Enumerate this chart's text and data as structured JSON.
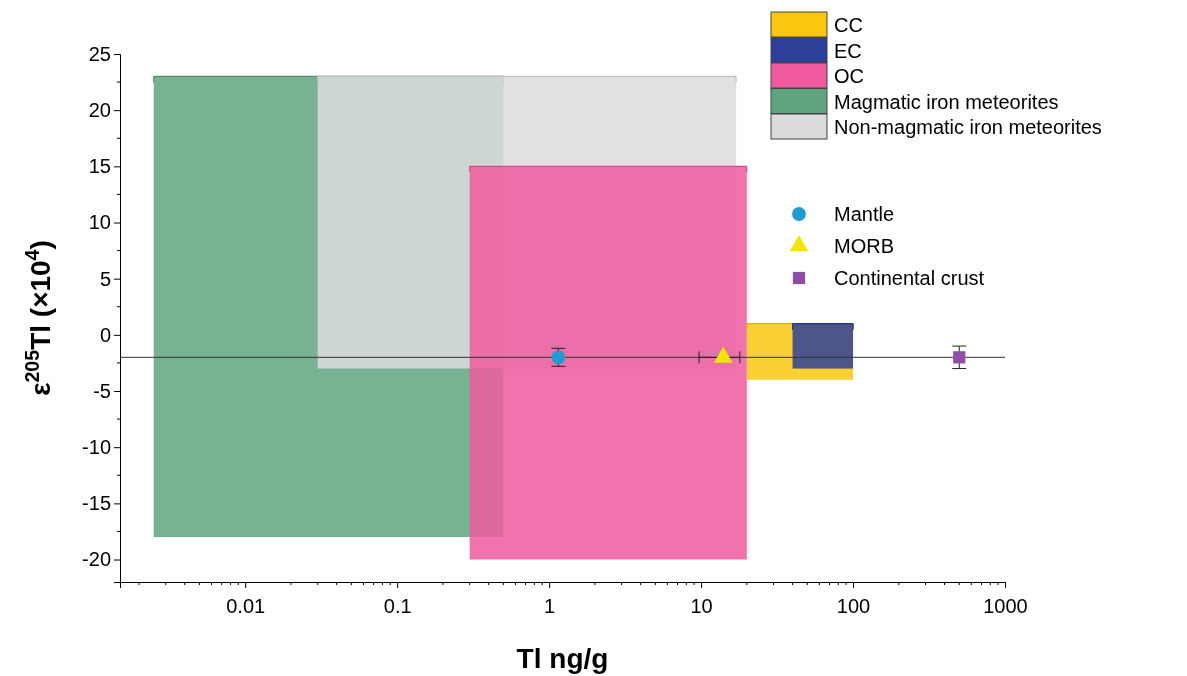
{
  "chart_data": {
    "type": "bar",
    "xlabel": "Tl ng/g",
    "ylabel": "ε$^{205}$Tl (×10$^{4}$)",
    "log": "x",
    "xlim": [
      0.0015,
      1000
    ],
    "xticks": [
      0.01,
      0.1,
      1,
      10,
      100,
      1000
    ],
    "ylim": [
      -22,
      25
    ],
    "yticks": [
      -20,
      -15,
      -10,
      -5,
      0,
      5,
      10,
      15,
      20,
      25
    ],
    "legend": "top right",
    "ref_lines": [
      {
        "axis": "y",
        "value": -2,
        "color": "#333333"
      }
    ],
    "series": [
      {
        "name": "CC",
        "type": "bar",
        "color": "#f9c80e",
        "x": [
          45
        ],
        "values": [
          5
        ],
        "base": [
          -4
        ],
        "xerrors": [
          [
            20,
            100
          ]
        ]
      },
      {
        "name": "EC",
        "type": "bar",
        "color": "#2e3f99",
        "x": [
          63
        ],
        "values": [
          4
        ],
        "base": [
          -3
        ],
        "xerrors": [
          [
            40,
            100
          ]
        ]
      },
      {
        "name": "OC",
        "type": "bar",
        "color": "#ef5a9f",
        "x": [
          2.4
        ],
        "values": [
          35
        ],
        "base": [
          -20
        ],
        "xerrors": [
          [
            0.3,
            20
          ]
        ]
      },
      {
        "name": "Magmatic iron meteorites",
        "type": "bar",
        "color": "#5fa47f",
        "x": [
          0.035
        ],
        "values": [
          41
        ],
        "base": [
          -18
        ],
        "xerrors": [
          [
            0.0025,
            0.5
          ]
        ]
      },
      {
        "name": "Non-magmatic iron meteorites",
        "type": "bar",
        "color": "#dcdcdc",
        "x": [
          0.71
        ],
        "values": [
          26
        ],
        "base": [
          -3
        ],
        "xerrors": [
          [
            0.03,
            17
          ]
        ]
      },
      {
        "name": "Mantle",
        "type": "scatter",
        "marker": "circle",
        "color": "#1f9bd1",
        "x": [
          1.15
        ],
        "values": [
          -2
        ],
        "errors": [
          0.8
        ]
      },
      {
        "name": "MORB",
        "type": "scatter",
        "marker": "triangle",
        "color": "#f2e600",
        "x": [
          14
        ],
        "values": [
          -2
        ],
        "xerrors": [
          [
            9.7,
            18
          ]
        ]
      },
      {
        "name": "Continental crust",
        "type": "scatter",
        "marker": "square",
        "color": "#8e4fa6",
        "x": [
          500
        ],
        "values": [
          -2
        ],
        "errors": [
          1
        ]
      }
    ]
  }
}
